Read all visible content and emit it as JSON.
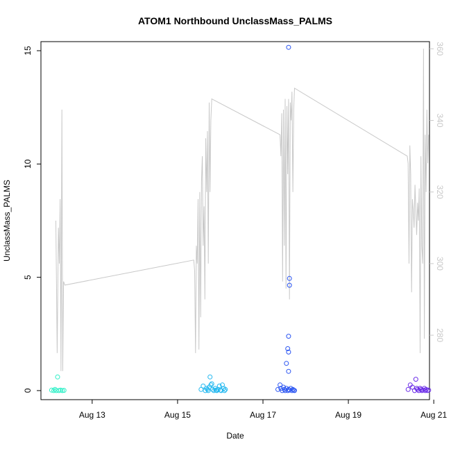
{
  "chart_data": {
    "type": "scatter",
    "title": "ATOM1 Northbound UnclassMass_PALMS",
    "xlabel": "Date",
    "ylabel": "UnclassMass_PALMS",
    "x_axis": {
      "type": "date",
      "range_days_from_aug12": [
        -0.2,
        8.9
      ],
      "ticks": [
        {
          "label": "Aug 13",
          "day": 1
        },
        {
          "label": "Aug 15",
          "day": 3
        },
        {
          "label": "Aug 17",
          "day": 5
        },
        {
          "label": "Aug 19",
          "day": 7
        },
        {
          "label": "Aug 21",
          "day": 9
        }
      ]
    },
    "y_left": {
      "ylim": [
        -0.4,
        15.4
      ],
      "ticks": [
        "0",
        "5",
        "10",
        "15"
      ]
    },
    "y_right": {
      "ylim": [
        262,
        362
      ],
      "ticks": [
        "280",
        "300",
        "320",
        "340",
        "360"
      ],
      "color": "#c8c8c8"
    },
    "grid": false,
    "legend": "none",
    "line_color": "#c8c8c8",
    "line_series": {
      "axis": "right",
      "x": [
        0.15,
        0.18,
        0.21,
        0.23,
        0.25,
        0.27,
        0.29,
        0.31,
        0.33,
        0.36,
        3.38,
        3.4,
        3.42,
        3.44,
        3.46,
        3.48,
        3.5,
        3.52,
        3.54,
        3.56,
        3.58,
        3.6,
        3.62,
        3.64,
        3.66,
        3.68,
        3.7,
        3.72,
        3.74,
        3.76,
        3.78,
        3.8,
        5.4,
        5.42,
        5.44,
        5.46,
        5.48,
        5.5,
        5.52,
        5.54,
        5.56,
        5.58,
        5.6,
        5.62,
        5.64,
        5.66,
        5.68,
        5.7,
        5.72,
        5.74,
        8.38,
        8.4,
        8.42,
        8.44,
        8.46,
        8.48,
        8.5,
        8.52,
        8.54,
        8.56,
        8.58,
        8.6,
        8.62,
        8.64,
        8.66,
        8.68,
        8.7,
        8.72,
        8.74,
        8.76,
        8.78,
        8.8,
        8.82,
        8.84,
        8.86,
        8.88
      ],
      "y": [
        312,
        275,
        310,
        300,
        318,
        270,
        343,
        270,
        295,
        294,
        301,
        298,
        275,
        305,
        300,
        318,
        276,
        320,
        285,
        323,
        330,
        305,
        316,
        290,
        335,
        320,
        337,
        300,
        345,
        320,
        340,
        346,
        336,
        330,
        342,
        295,
        343,
        305,
        346,
        293,
        344,
        325,
        346,
        290,
        345,
        340,
        348,
        320,
        343,
        349,
        330,
        328,
        300,
        333,
        325,
        292,
        318,
        315,
        310,
        322,
        315,
        308,
        317,
        312,
        321,
        275,
        330,
        305,
        300,
        360,
        279,
        336,
        320,
        343,
        328,
        336
      ]
    },
    "scatter_series": [
      {
        "axis": "left",
        "x": [
          0.05,
          0.1,
          0.13,
          0.16,
          0.19,
          0.22,
          0.26,
          0.3,
          0.34
        ],
        "y": [
          0.02,
          0.0,
          0.05,
          0.0,
          0.6,
          0.0,
          0.02,
          0.0,
          0.01
        ]
      },
      {
        "axis": "left",
        "x": [
          3.55,
          3.6,
          3.65,
          3.68,
          3.7,
          3.72,
          3.74,
          3.76,
          3.78,
          3.8,
          3.82,
          3.85,
          3.88,
          3.9,
          3.92,
          3.95,
          3.98,
          4.0,
          4.02,
          4.05,
          4.08,
          4.1,
          4.12
        ],
        "y": [
          0.05,
          0.2,
          0.0,
          0.1,
          0.05,
          0.0,
          0.15,
          0.6,
          0.25,
          0.3,
          0.05,
          0.0,
          0.1,
          0.02,
          0.0,
          0.05,
          0.2,
          0.02,
          0.0,
          0.25,
          0.1,
          0.0,
          0.05
        ]
      },
      {
        "axis": "left",
        "x": [
          5.35,
          5.4,
          5.42,
          5.45,
          5.48,
          5.5,
          5.52,
          5.55,
          5.58,
          5.6,
          5.62,
          5.65,
          5.68,
          5.7,
          5.72,
          5.74,
          5.6,
          5.62,
          5.58,
          5.6,
          5.6,
          5.55,
          5.6,
          5.62
        ],
        "y": [
          0.05,
          0.25,
          0.1,
          0.0,
          0.15,
          0.05,
          0.0,
          0.1,
          0.0,
          0.05,
          0.02,
          0.1,
          0.0,
          0.05,
          0.02,
          0.0,
          15.15,
          4.95,
          1.85,
          2.4,
          1.7,
          1.2,
          0.85,
          4.65
        ]
      },
      {
        "axis": "left",
        "x": [
          8.4,
          8.45,
          8.5,
          8.55,
          8.6,
          8.62,
          8.65,
          8.68,
          8.7,
          8.72,
          8.75,
          8.78,
          8.8,
          8.82,
          8.85,
          8.88,
          8.58
        ],
        "y": [
          0.05,
          0.25,
          0.15,
          0.0,
          0.1,
          0.05,
          0.0,
          0.1,
          0.05,
          0.0,
          0.02,
          0.1,
          0.0,
          0.05,
          0.0,
          0.02,
          0.5
        ]
      }
    ],
    "scatter_colors": [
      "#2cf0c7",
      "#22b8f0",
      "#2b55f2",
      "#6a2be8"
    ]
  }
}
